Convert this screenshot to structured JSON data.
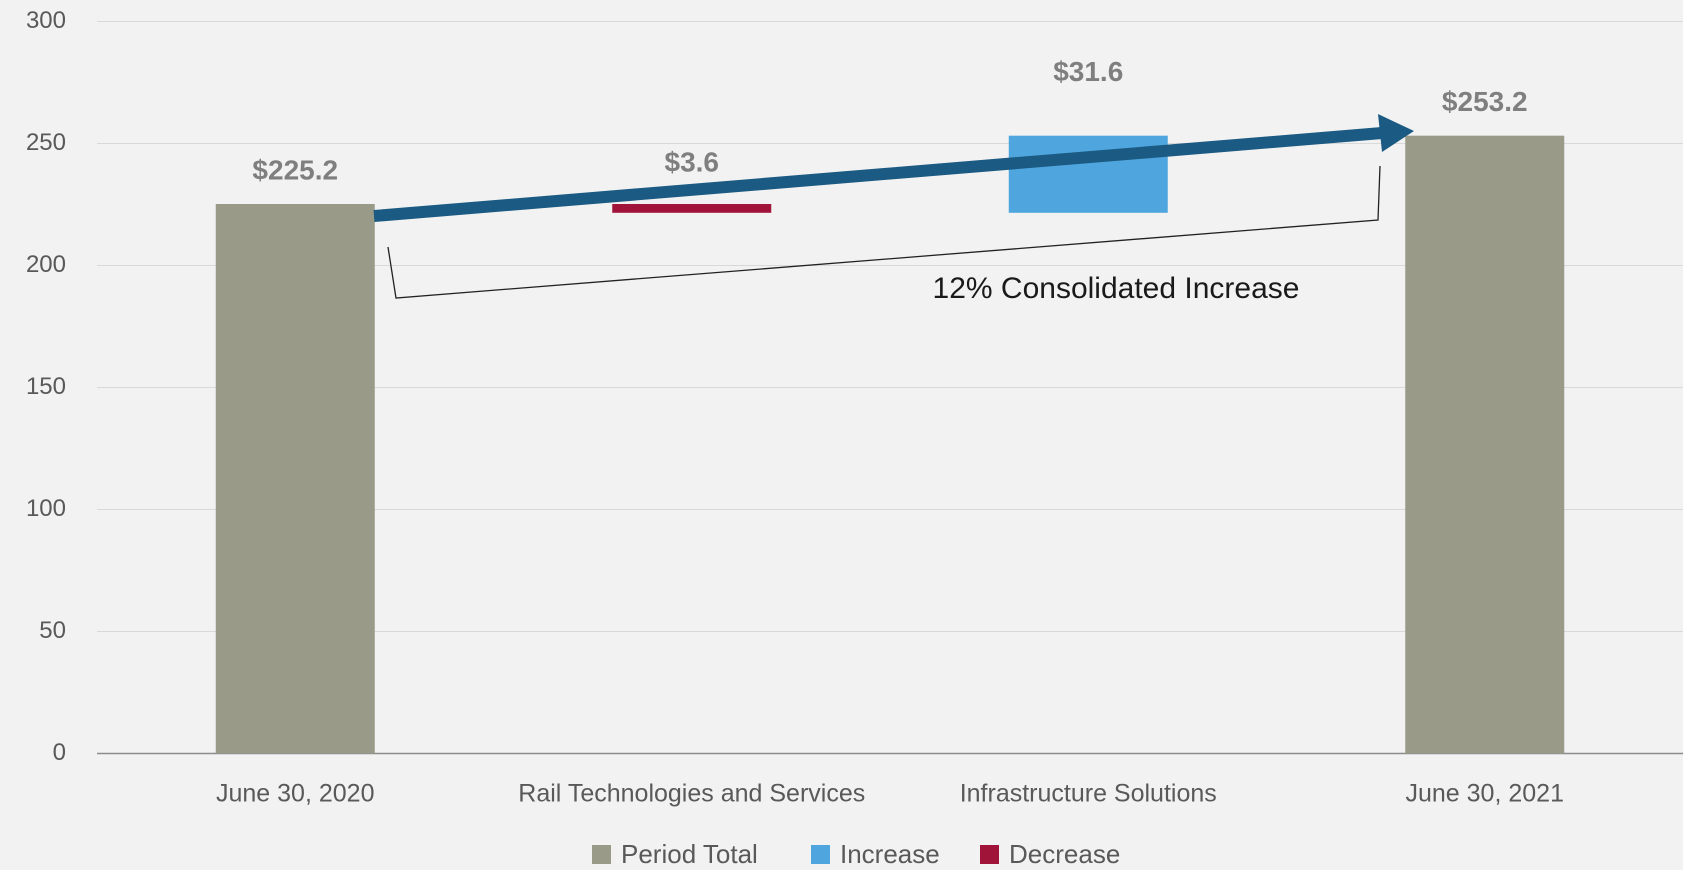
{
  "chart_data": {
    "type": "waterfall",
    "categories": [
      "June 30, 2020",
      "Rail Technologies and Services",
      "Infrastructure Solutions",
      "June 30, 2021"
    ],
    "values": [
      225.2,
      3.6,
      31.6,
      253.2
    ],
    "value_labels": [
      "$225.2",
      "$3.6",
      "$31.6",
      "$253.2"
    ],
    "kinds": [
      "Period Total",
      "Decrease",
      "Increase",
      "Period Total"
    ],
    "legend": [
      {
        "name": "Period Total",
        "color": "#999a88"
      },
      {
        "name": "Increase",
        "color": "#4fa6de"
      },
      {
        "name": "Decrease",
        "color": "#a0143a"
      }
    ],
    "annotation": "12% Consolidated Increase",
    "ylim": [
      0,
      300
    ],
    "yticks": [
      0,
      50,
      100,
      150,
      200,
      250,
      300
    ],
    "grid": true
  }
}
